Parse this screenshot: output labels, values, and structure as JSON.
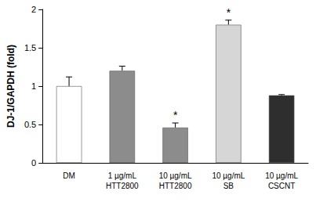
{
  "chart_data": {
    "type": "bar",
    "y_label": "DJ-1/GAPDH (fold)",
    "categories": [
      "DM",
      "1 µg/mL\nHTT2800",
      "10 µg/mL\nHTT2800",
      "10 µg/mL\nSB",
      "10 µg/mL\nCSCNT"
    ],
    "values": [
      1.0,
      1.2,
      0.46,
      1.8,
      0.88
    ],
    "errors": [
      0.12,
      0.06,
      0.06,
      0.06,
      0.01
    ],
    "colors": [
      "#ffffff",
      "#8c8c8c",
      "#8c8c8c",
      "#d6d6d6",
      "#2e2e2e"
    ],
    "annotations": [
      {
        "category": "10 µg/mL\nHTT2800",
        "text": "*"
      },
      {
        "category": "10 µg/mL\nSB",
        "text": "*"
      }
    ],
    "ylim": [
      0,
      2
    ],
    "yticks": [
      0,
      0.5,
      1,
      1.5,
      2
    ],
    "grid": false
  }
}
